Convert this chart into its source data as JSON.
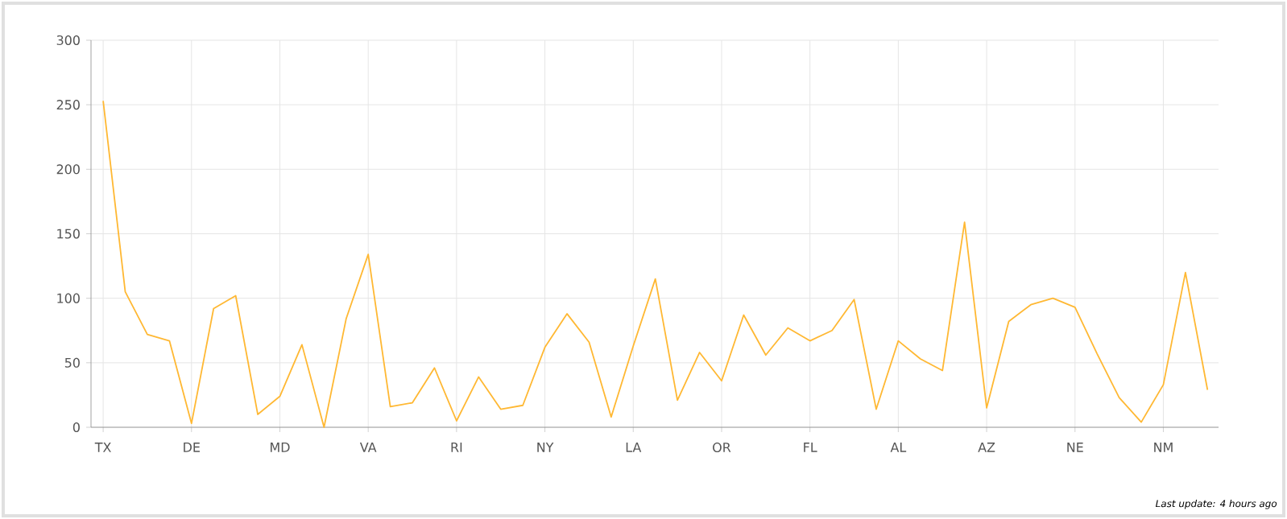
{
  "chart_data": {
    "type": "line",
    "categories": [
      "TX",
      null,
      null,
      null,
      "DE",
      null,
      null,
      null,
      "MD",
      null,
      null,
      null,
      "VA",
      null,
      null,
      null,
      "RI",
      null,
      null,
      null,
      "NY",
      null,
      null,
      null,
      "LA",
      null,
      null,
      null,
      "OR",
      null,
      null,
      null,
      "FL",
      null,
      null,
      null,
      "AL",
      null,
      null,
      null,
      "AZ",
      null,
      null,
      null,
      "NE",
      null,
      null,
      null,
      "NM",
      null,
      null
    ],
    "values": [
      253,
      105,
      72,
      67,
      3,
      92,
      102,
      10,
      24,
      64,
      0,
      84,
      134,
      16,
      19,
      46,
      5,
      39,
      14,
      17,
      62,
      88,
      66,
      8,
      63,
      115,
      21,
      58,
      36,
      87,
      56,
      77,
      67,
      75,
      99,
      14,
      67,
      53,
      44,
      159,
      15,
      82,
      95,
      100,
      93,
      57,
      23,
      4,
      33,
      120,
      29
    ],
    "color": "#ffb833",
    "ylim": [
      0,
      300
    ],
    "yticks": [
      0,
      50,
      100,
      150,
      200,
      250,
      300
    ],
    "grid": true,
    "annotations": [
      "Last update: 4 hours ago"
    ]
  }
}
